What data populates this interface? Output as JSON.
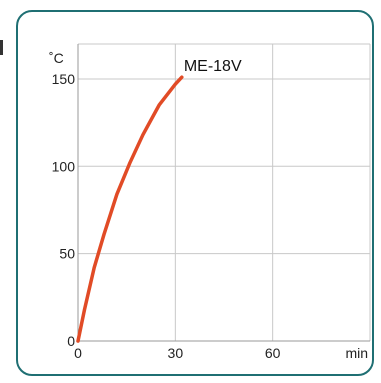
{
  "chart_data": {
    "type": "line",
    "title": "",
    "xlabel": "min",
    "ylabel": "˚C",
    "xlim": [
      0,
      90
    ],
    "ylim": [
      0,
      170
    ],
    "x_ticks": [
      0,
      30,
      60
    ],
    "x_tick_labels": [
      "0",
      "30",
      "60"
    ],
    "y_ticks": [
      0,
      50,
      100,
      150
    ],
    "y_tick_labels": [
      "0",
      "50",
      "100",
      "150"
    ],
    "grid": true,
    "series": [
      {
        "name": "ME-18V",
        "color": "#e14b26",
        "x": [
          0,
          2,
          5,
          8,
          12,
          16,
          20,
          25,
          30,
          32
        ],
        "y": [
          0,
          18,
          42,
          61,
          84,
          102,
          118,
          135,
          147,
          151
        ]
      }
    ]
  }
}
